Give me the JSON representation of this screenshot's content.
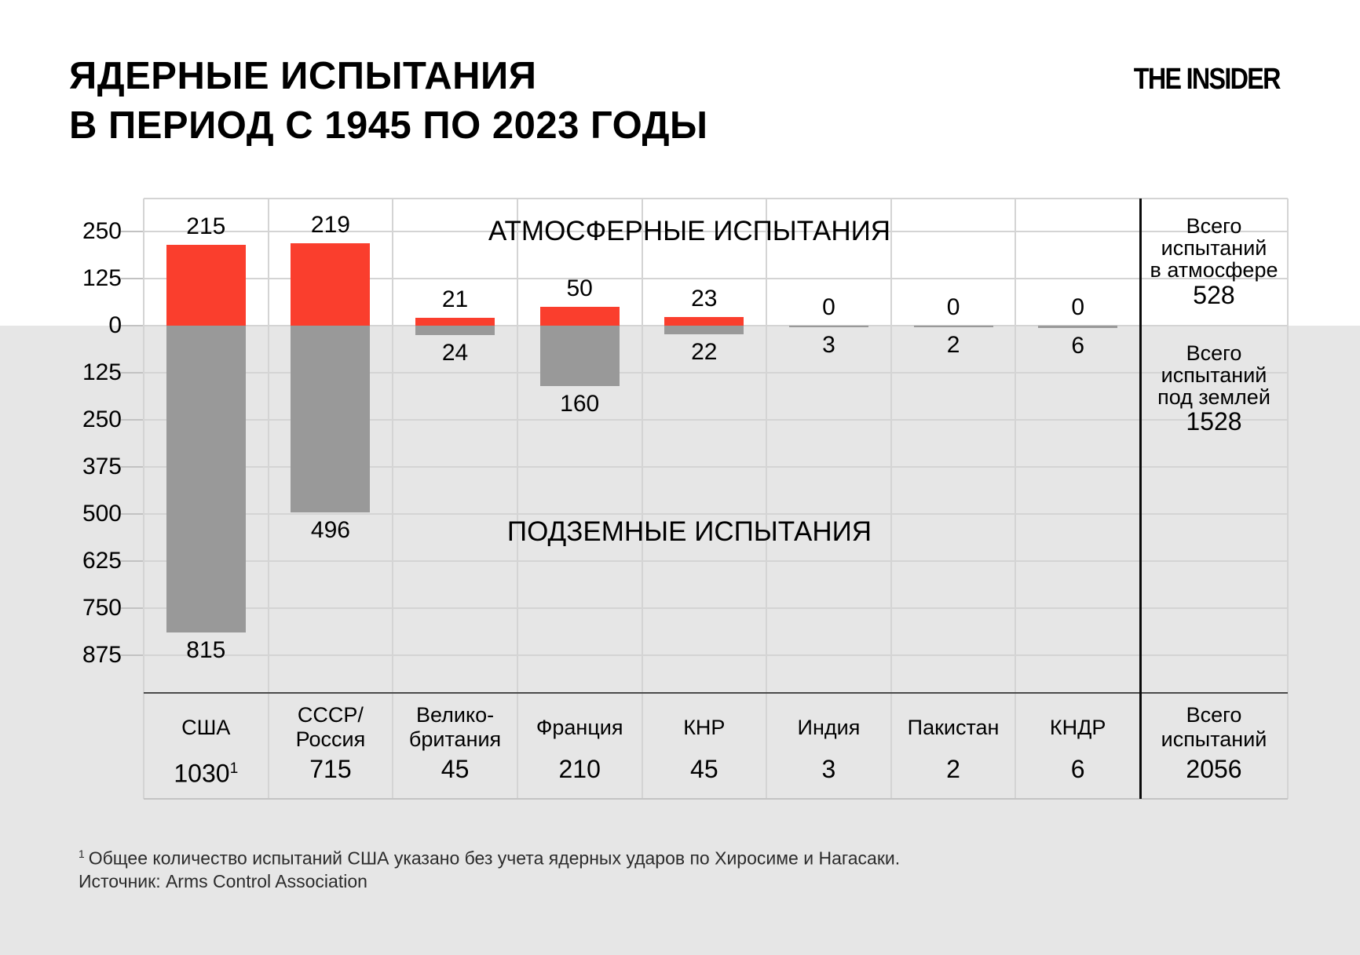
{
  "title": {
    "line1": "ЯДЕРНЫЕ ИСПЫТАНИЯ",
    "line2": "В ПЕРИОД С 1945 ПО 2023 ГОДЫ"
  },
  "logo": "THE INSIDER",
  "colors": {
    "bar_red": "#fa3e2d",
    "bar_gray": "#999999",
    "underground_bg": "#e6e6e6"
  },
  "chart_data": {
    "type": "bar",
    "diverging": true,
    "sections": {
      "atmospheric_label": "АТМОСФЕРНЫЕ ИСПЫТАНИЯ",
      "underground_label": "ПОДЗЕМНЫЕ ИСПЫТАНИЯ"
    },
    "y_axis": {
      "tick_labels": [
        "250",
        "125",
        "0",
        "125",
        "250",
        "375",
        "500",
        "625",
        "750",
        "875"
      ],
      "tick_interval": 125,
      "up_max": 250,
      "down_max": 875
    },
    "categories": [
      "США",
      "СССР/Россия",
      "Великобритания",
      "Франция",
      "КНР",
      "Индия",
      "Пакистан",
      "КНДР"
    ],
    "series": [
      {
        "name": "Атмосферные испытания",
        "color": "#fa3e2d",
        "values": [
          215,
          219,
          21,
          50,
          23,
          0,
          0,
          0
        ]
      },
      {
        "name": "Подземные испытания",
        "color": "#999999",
        "values": [
          815,
          496,
          24,
          160,
          22,
          3,
          2,
          6
        ]
      }
    ],
    "countries": [
      {
        "name": "США",
        "atmospheric": 215,
        "underground": 815,
        "total": "1030",
        "footnote_marker": "1"
      },
      {
        "name": "СССР/\nРоссия",
        "atmospheric": 219,
        "underground": 496,
        "total": "715"
      },
      {
        "name": "Велико-\nбритания",
        "atmospheric": 21,
        "underground": 24,
        "total": "45"
      },
      {
        "name": "Франция",
        "atmospheric": 50,
        "underground": 160,
        "total": "210"
      },
      {
        "name": "КНР",
        "atmospheric": 23,
        "underground": 22,
        "total": "45"
      },
      {
        "name": "Индия",
        "atmospheric": 0,
        "underground": 3,
        "total": "3"
      },
      {
        "name": "Пакистан",
        "atmospheric": 0,
        "underground": 2,
        "total": "2"
      },
      {
        "name": "КНДР",
        "atmospheric": 0,
        "underground": 6,
        "total": "6"
      }
    ],
    "summary": {
      "atmosphere": {
        "label": "Всего\nиспытаний\nв атмосфере",
        "value": "528"
      },
      "underground": {
        "label": "Всего\nиспытаний\nпод землей",
        "value": "1528"
      },
      "all": {
        "label": "Всего\nиспытаний",
        "value": "2056"
      }
    }
  },
  "footnote": {
    "marker": "1",
    "text": "Общее количество испытаний США указано без учета ядерных ударов по Хиросиме и Нагасаки.",
    "source": "Источник: Arms Control Association"
  }
}
